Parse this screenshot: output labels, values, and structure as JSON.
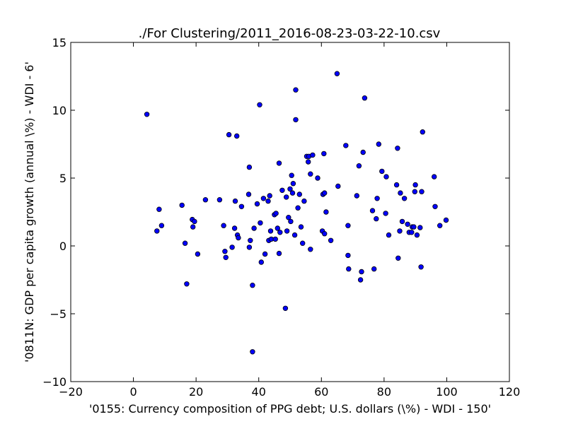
{
  "chart_data": {
    "type": "scatter",
    "title": "./For Clustering/2011_2016-08-23-03-22-10.csv",
    "xlabel": "'0155: Currency composition of PPG debt; U.S. dollars  (\\%) - WDI - 150'",
    "ylabel": "'0811N: GDP per capita growth  (annual \\%) - WDI - 6'",
    "xlim": [
      -20,
      120
    ],
    "ylim": [
      -10,
      15
    ],
    "xticks": [
      -20,
      0,
      20,
      40,
      60,
      80,
      100,
      120
    ],
    "yticks": [
      -10,
      -5,
      0,
      5,
      10,
      15
    ],
    "xtick_labels": [
      "−20",
      "0",
      "20",
      "40",
      "60",
      "80",
      "100",
      "120"
    ],
    "ytick_labels": [
      "−10",
      "−5",
      "0",
      "5",
      "10",
      "15"
    ],
    "grid": false,
    "legend": "none",
    "marker_color": "#0000ff",
    "points": [
      [
        4.3,
        9.7
      ],
      [
        7.5,
        1.1
      ],
      [
        8.2,
        2.7
      ],
      [
        9.0,
        1.5
      ],
      [
        15.5,
        3.0
      ],
      [
        16.5,
        0.2
      ],
      [
        17.0,
        -2.8
      ],
      [
        18.8,
        1.95
      ],
      [
        19.0,
        1.4
      ],
      [
        19.5,
        1.8
      ],
      [
        20.5,
        -0.6
      ],
      [
        23.0,
        3.4
      ],
      [
        27.5,
        3.4
      ],
      [
        28.8,
        1.5
      ],
      [
        29.2,
        -0.4
      ],
      [
        29.5,
        -0.85
      ],
      [
        30.5,
        8.2
      ],
      [
        31.5,
        -0.1
      ],
      [
        32.3,
        1.3
      ],
      [
        32.5,
        3.3
      ],
      [
        33.0,
        8.1
      ],
      [
        33.2,
        0.8
      ],
      [
        33.5,
        0.6
      ],
      [
        34.5,
        2.9
      ],
      [
        36.8,
        3.8
      ],
      [
        37.0,
        5.8
      ],
      [
        37.0,
        -0.1
      ],
      [
        37.3,
        0.4
      ],
      [
        38.0,
        -2.9
      ],
      [
        38.0,
        -7.8
      ],
      [
        38.5,
        1.3
      ],
      [
        39.5,
        3.1
      ],
      [
        40.3,
        10.4
      ],
      [
        40.5,
        1.7
      ],
      [
        40.8,
        -1.2
      ],
      [
        41.5,
        3.5
      ],
      [
        42.0,
        -0.6
      ],
      [
        43.0,
        3.3
      ],
      [
        43.2,
        0.4
      ],
      [
        43.5,
        3.7
      ],
      [
        43.8,
        1.1
      ],
      [
        44.0,
        0.5
      ],
      [
        45.0,
        2.3
      ],
      [
        45.3,
        0.5
      ],
      [
        45.5,
        2.4
      ],
      [
        46.0,
        1.3
      ],
      [
        46.5,
        6.1
      ],
      [
        46.5,
        -0.55
      ],
      [
        46.8,
        1.0
      ],
      [
        47.5,
        4.1
      ],
      [
        48.5,
        -4.6
      ],
      [
        48.8,
        3.6
      ],
      [
        49.0,
        1.1
      ],
      [
        49.5,
        2.1
      ],
      [
        50.0,
        4.2
      ],
      [
        50.2,
        1.8
      ],
      [
        50.5,
        5.2
      ],
      [
        50.8,
        3.9
      ],
      [
        51.0,
        4.6
      ],
      [
        51.5,
        0.8
      ],
      [
        51.8,
        11.5
      ],
      [
        51.8,
        9.3
      ],
      [
        52.5,
        2.8
      ],
      [
        53.0,
        3.8
      ],
      [
        53.5,
        1.4
      ],
      [
        54.0,
        0.2
      ],
      [
        54.5,
        3.3
      ],
      [
        55.3,
        6.6
      ],
      [
        55.8,
        6.2
      ],
      [
        56.0,
        6.6
      ],
      [
        56.5,
        5.3
      ],
      [
        56.5,
        -0.25
      ],
      [
        57.2,
        6.7
      ],
      [
        58.8,
        5.0
      ],
      [
        60.3,
        1.1
      ],
      [
        60.5,
        3.8
      ],
      [
        60.8,
        6.8
      ],
      [
        61.0,
        0.9
      ],
      [
        61.0,
        3.9
      ],
      [
        61.5,
        2.5
      ],
      [
        63.0,
        0.4
      ],
      [
        65.0,
        12.7
      ],
      [
        65.3,
        4.4
      ],
      [
        67.8,
        7.4
      ],
      [
        68.5,
        1.5
      ],
      [
        68.5,
        -0.7
      ],
      [
        68.7,
        -1.7
      ],
      [
        71.3,
        3.7
      ],
      [
        72.0,
        5.9
      ],
      [
        72.5,
        -2.5
      ],
      [
        72.8,
        -1.9
      ],
      [
        73.3,
        6.9
      ],
      [
        73.8,
        10.9
      ],
      [
        76.3,
        2.6
      ],
      [
        76.8,
        -1.7
      ],
      [
        77.5,
        2.0
      ],
      [
        77.8,
        3.5
      ],
      [
        78.3,
        7.5
      ],
      [
        79.3,
        5.5
      ],
      [
        80.5,
        2.4
      ],
      [
        80.7,
        5.1
      ],
      [
        81.5,
        0.8
      ],
      [
        84.0,
        4.5
      ],
      [
        84.3,
        7.2
      ],
      [
        84.5,
        -0.9
      ],
      [
        85.0,
        1.1
      ],
      [
        85.2,
        3.9
      ],
      [
        85.8,
        1.8
      ],
      [
        86.5,
        3.5
      ],
      [
        87.5,
        1.6
      ],
      [
        88.0,
        1.0
      ],
      [
        88.8,
        1.0
      ],
      [
        89.0,
        1.4
      ],
      [
        89.5,
        1.4
      ],
      [
        89.8,
        4.0
      ],
      [
        90.0,
        4.5
      ],
      [
        90.5,
        0.8
      ],
      [
        91.5,
        1.35
      ],
      [
        91.8,
        -1.55
      ],
      [
        92.0,
        4.0
      ],
      [
        92.3,
        8.4
      ],
      [
        96.0,
        5.1
      ],
      [
        96.3,
        2.9
      ],
      [
        97.8,
        1.5
      ],
      [
        99.8,
        1.9
      ]
    ]
  }
}
